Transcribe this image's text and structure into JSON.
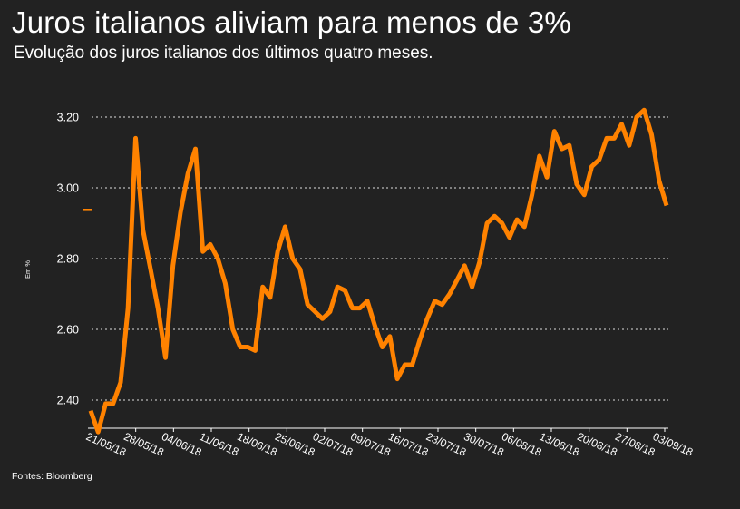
{
  "title": "Juros italianos aliviam para menos de 3%",
  "subtitle": "Evolução dos juros italianos dos últimos quatro meses.",
  "source": "Fontes: Bloomberg",
  "colors": {
    "background": "#222222",
    "line": "#ff8200",
    "text": "#ffffff",
    "grid": "#ffffff"
  },
  "chart_data": {
    "type": "line",
    "title": "Juros italianos aliviam para menos de 3%",
    "ylabel": "Em %",
    "ylim": [
      2.33,
      3.25
    ],
    "yticks": [
      2.4,
      2.6,
      2.8,
      3.0,
      3.2
    ],
    "ytick_labels": [
      "2.40",
      "2.60",
      "2.80",
      "3.00",
      "3.20"
    ],
    "xtick_labels": [
      "21/05/18",
      "28/05/18",
      "04/06/18",
      "11/06/18",
      "18/06/18",
      "25/06/18",
      "02/07/18",
      "09/07/18",
      "16/07/18",
      "23/07/18",
      "30/07/18",
      "06/08/18",
      "13/08/18",
      "20/08/18",
      "27/08/18",
      "03/09/18"
    ],
    "grid": "horizontal dotted",
    "series": [
      {
        "values": [
          2.37,
          2.31,
          2.39,
          2.39,
          2.45,
          2.66,
          3.14,
          2.88,
          2.77,
          2.66,
          2.52,
          2.78,
          2.93,
          3.04,
          3.11,
          2.82,
          2.84,
          2.8,
          2.73,
          2.6,
          2.55,
          2.55,
          2.54,
          2.72,
          2.69,
          2.82,
          2.89,
          2.8,
          2.77,
          2.67,
          2.65,
          2.63,
          2.65,
          2.72,
          2.71,
          2.66,
          2.66,
          2.68,
          2.61,
          2.55,
          2.58,
          2.46,
          2.5,
          2.5,
          2.57,
          2.63,
          2.68,
          2.67,
          2.7,
          2.74,
          2.78,
          2.72,
          2.79,
          2.9,
          2.92,
          2.9,
          2.86,
          2.91,
          2.89,
          2.98,
          3.09,
          3.03,
          3.16,
          3.11,
          3.12,
          3.01,
          2.98,
          3.06,
          3.08,
          3.14,
          3.14,
          3.18,
          3.12,
          3.2,
          3.22,
          3.15,
          3.02,
          2.95
        ]
      }
    ]
  }
}
